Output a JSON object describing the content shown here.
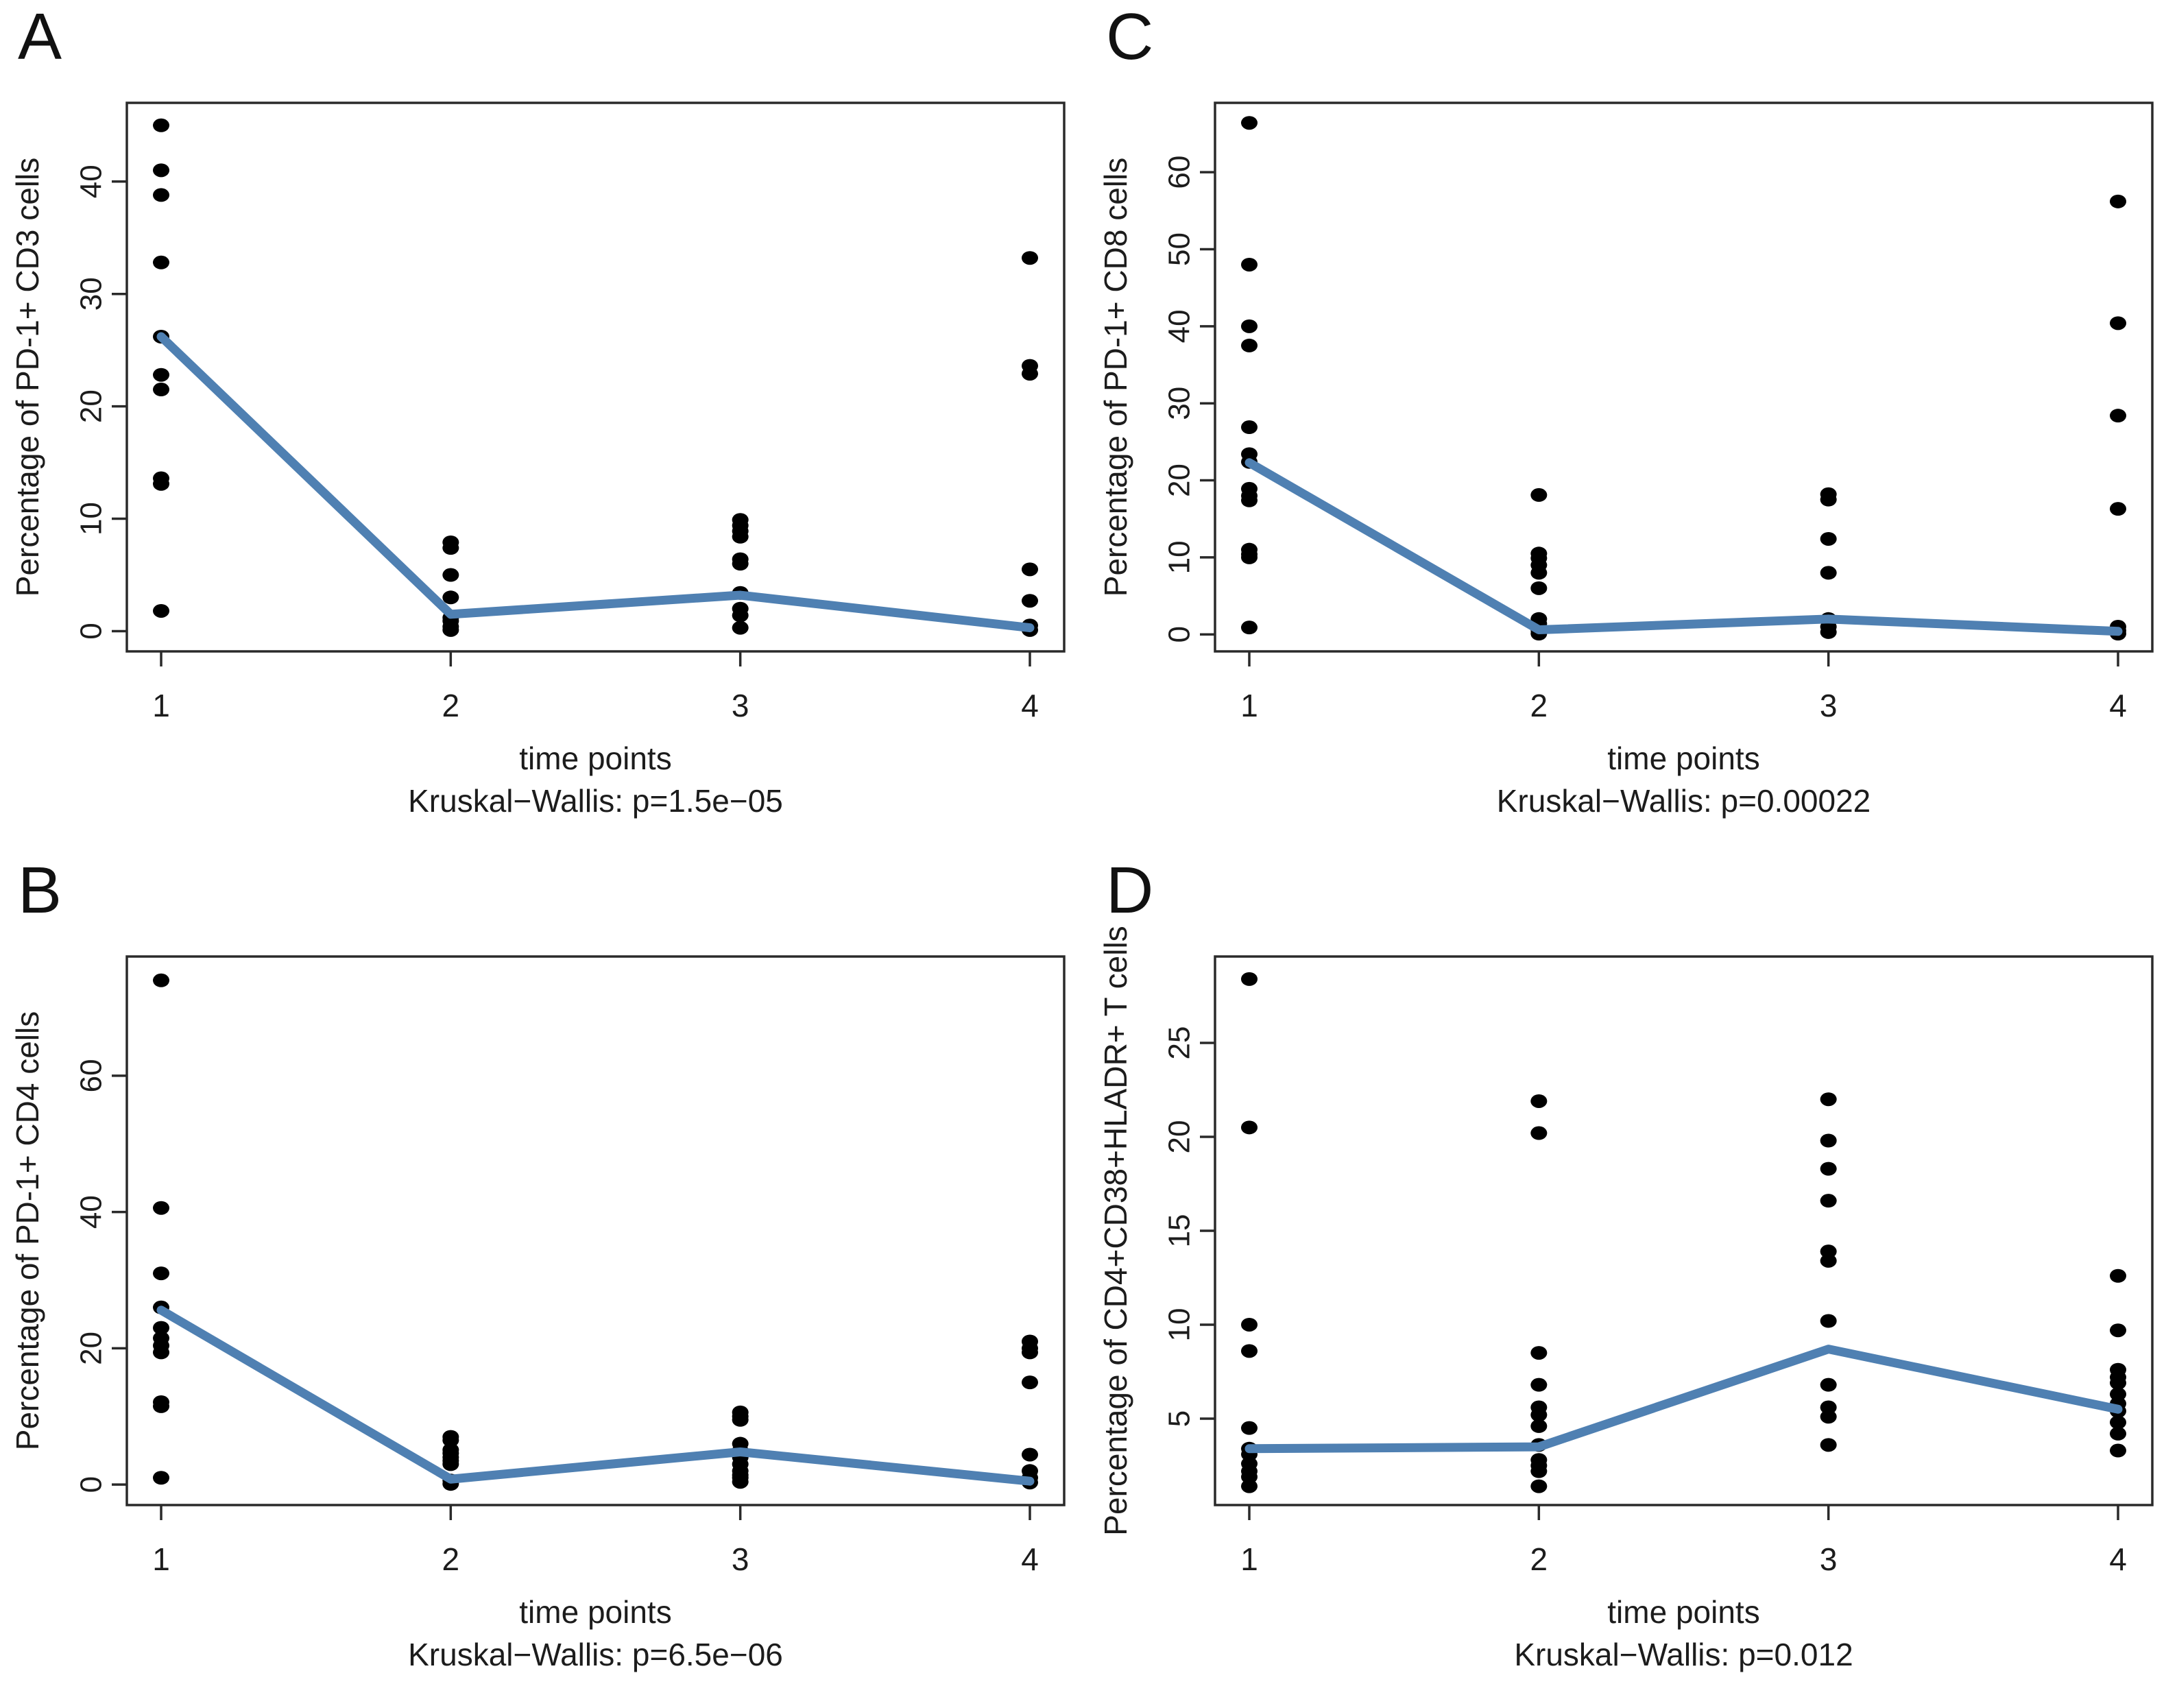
{
  "figure": {
    "background": "#ffffff",
    "line_color": "#4f80b2",
    "point_color": "#000000",
    "axis_color": "#2a2a2a",
    "text_color": "#1c1c1c"
  },
  "chart_data": [
    {
      "panel_label": "A",
      "type": "scatter",
      "ylabel": "Percentage of PD-1+ CD3 cells",
      "xlabel": "time points",
      "stat_caption": "Kruskal−Wallis: p=1.5e−05",
      "x_categories": [
        "1",
        "2",
        "3",
        "4"
      ],
      "yticks": [
        0,
        10,
        20,
        30,
        40
      ],
      "ylim": [
        -1.8,
        47
      ],
      "grid": false,
      "legend": "none",
      "points_by_time": [
        [
          45,
          41,
          38.8,
          32.8,
          26.2,
          22.8,
          21.5,
          13.6,
          13.1,
          1.8
        ],
        [
          7.9,
          7.4,
          5.0,
          3.0,
          1.2,
          0.9,
          0.4,
          0.1
        ],
        [
          9.9,
          9.4,
          8.9,
          8.4,
          6.4,
          6.0,
          3.4,
          2.0,
          1.4,
          0.3
        ],
        [
          33.2,
          23.6,
          22.9,
          5.5,
          2.7,
          0.5,
          0.1
        ]
      ],
      "median_line": [
        26.2,
        1.5,
        3.2,
        0.3
      ]
    },
    {
      "panel_label": "C",
      "type": "scatter",
      "ylabel": "Percentage of PD-1+ CD8 cells",
      "xlabel": "time points",
      "stat_caption": "Kruskal−Wallis: p=0.00022",
      "x_categories": [
        "1",
        "2",
        "3",
        "4"
      ],
      "yticks": [
        0,
        10,
        20,
        30,
        40,
        50,
        60
      ],
      "ylim": [
        -2.2,
        69
      ],
      "grid": false,
      "legend": "none",
      "points_by_time": [
        [
          66.4,
          48,
          40,
          37.5,
          26.9,
          23.4,
          22.4,
          18.9,
          18,
          17.4,
          11,
          10.4,
          10,
          0.9
        ],
        [
          18.1,
          10.5,
          9.9,
          9.0,
          8.0,
          6.0,
          2.0,
          1.4,
          0.5,
          0.1
        ],
        [
          18.2,
          17.5,
          12.4,
          8.0,
          2.0,
          1.0,
          0.3
        ],
        [
          56.2,
          40.4,
          28.4,
          16.3,
          1.0,
          0.5,
          0.1
        ]
      ],
      "median_line": [
        22.3,
        0.6,
        2.0,
        0.4
      ]
    },
    {
      "panel_label": "B",
      "type": "scatter",
      "ylabel": "Percentage of PD-1+ CD4 cells",
      "xlabel": "time points",
      "stat_caption": "Kruskal−Wallis: p=6.5e−06",
      "x_categories": [
        "1",
        "2",
        "3",
        "4"
      ],
      "yticks": [
        0,
        20,
        40,
        60
      ],
      "ylim": [
        -3,
        77.5
      ],
      "grid": false,
      "legend": "none",
      "points_by_time": [
        [
          74,
          40.6,
          31,
          26,
          23,
          21.5,
          20.4,
          19.4,
          12.1,
          11.5,
          1.0
        ],
        [
          7.0,
          6.5,
          5.1,
          4.6,
          4.0,
          3.5,
          3.0,
          0.6,
          0.1
        ],
        [
          10.6,
          10.0,
          9.5,
          6.0,
          5.0,
          4.0,
          3.0,
          2.0,
          1.4,
          1.0,
          0.4
        ],
        [
          21.0,
          20.0,
          19.4,
          15.0,
          4.4,
          2.0,
          1.0,
          0.3
        ]
      ],
      "median_line": [
        25.6,
        0.8,
        4.8,
        0.5
      ]
    },
    {
      "panel_label": "D",
      "type": "scatter",
      "ylabel": "Percentage of CD4+CD38+HLADR+ T cells",
      "xlabel": "time points",
      "stat_caption": "Kruskal−Wallis: p=0.012",
      "x_categories": [
        "1",
        "2",
        "3",
        "4"
      ],
      "yticks": [
        5,
        10,
        15,
        20,
        25
      ],
      "ylim": [
        0.4,
        29.6
      ],
      "grid": false,
      "legend": "none",
      "points_by_time": [
        [
          28.4,
          20.5,
          10.0,
          8.6,
          4.5,
          3.4,
          3.1,
          2.6,
          2.2,
          1.9,
          1.4
        ],
        [
          21.9,
          20.2,
          8.5,
          6.8,
          5.6,
          5.2,
          4.6,
          3.6,
          2.8,
          2.5,
          2.2,
          1.4
        ],
        [
          22.0,
          19.8,
          18.3,
          16.6,
          13.9,
          13.4,
          10.2,
          6.8,
          5.6,
          5.1,
          3.6
        ],
        [
          12.6,
          9.7,
          7.6,
          7.2,
          6.9,
          6.3,
          5.8,
          5.4,
          4.8,
          4.2,
          3.3
        ]
      ],
      "median_line": [
        3.4,
        3.5,
        8.7,
        5.5
      ]
    }
  ]
}
